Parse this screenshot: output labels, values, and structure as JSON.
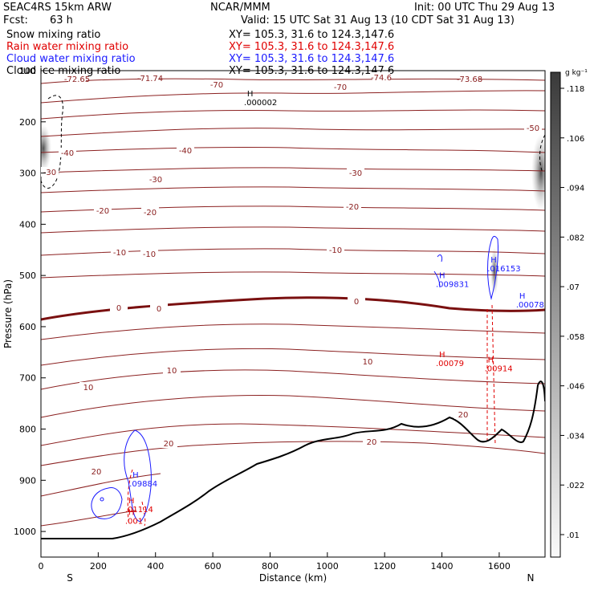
{
  "header": {
    "model": "SEAC4RS 15km ARW",
    "center": "NCAR/MMM",
    "init": "Init: 00 UTC Thu 29 Aug 13",
    "fcst_label": "Fcst:",
    "fcst_value": "63 h",
    "valid": "Valid: 15 UTC Sat 31 Aug 13 (10 CDT Sat 31 Aug 13)"
  },
  "fields": [
    {
      "name": "Snow mixing ratio",
      "xy": "XY= 105.3, 31.6 to 124.3,147.6",
      "color": "#000000"
    },
    {
      "name": "Rain water mixing ratio",
      "xy": "XY= 105.3, 31.6 to 124.3,147.6",
      "color": "#e00000"
    },
    {
      "name": "Cloud water mixing ratio",
      "xy": "XY= 105.3, 31.6 to 124.3,147.6",
      "color": "#1a1aff"
    },
    {
      "name": "Cloud ice mixing ratio",
      "xy": "XY= 105.3, 31.6 to 124.3,147.6",
      "color": "#000000"
    }
  ],
  "colorbar": {
    "unit": "g kg⁻¹",
    "labels": [
      ".01",
      ".022",
      ".034",
      ".046",
      ".058",
      ".07",
      ".082",
      ".094",
      ".106",
      ".118"
    ]
  },
  "chart_data": {
    "type": "cross-section",
    "xlabel": "Distance (km)",
    "ylabel": "Pressure (hPa)",
    "xlim": [
      0,
      1760
    ],
    "ylim": [
      1050,
      100
    ],
    "x_ticks": [
      0,
      200,
      400,
      600,
      800,
      1000,
      1200,
      1400,
      1600
    ],
    "y_ticks": [
      100,
      200,
      300,
      400,
      500,
      600,
      700,
      800,
      900,
      1000
    ],
    "endpoints": {
      "left": "S",
      "right": "N"
    },
    "temperature_contours": [
      {
        "label": "-72.65"
      },
      {
        "label": "-71.74"
      },
      {
        "label": "-70"
      },
      {
        "label": "-74.6"
      },
      {
        "label": "-73.68"
      },
      {
        "label": "-50"
      },
      {
        "label": "-40"
      },
      {
        "label": "-30"
      },
      {
        "label": "-20"
      },
      {
        "label": "-10"
      },
      {
        "label": "0"
      },
      {
        "label": "10"
      },
      {
        "label": "20"
      }
    ],
    "maxima": [
      {
        "mark": "H",
        "value": ".000002",
        "series": "Cloud ice mixing ratio",
        "x": 720,
        "p": 150
      },
      {
        "mark": "H",
        "value": ".016153",
        "series": "Cloud water mixing ratio",
        "x": 1570,
        "p": 475
      },
      {
        "mark": "H",
        "value": ".009831",
        "series": "Cloud water mixing ratio",
        "x": 1390,
        "p": 505
      },
      {
        "mark": "H",
        "value": ".00078",
        "series": "Cloud water mixing ratio",
        "x": 1670,
        "p": 545
      },
      {
        "mark": "H",
        "value": ".00079",
        "series": "Rain water mixing ratio",
        "x": 1390,
        "p": 660
      },
      {
        "mark": "H",
        "value": ".00914",
        "series": "Rain water mixing ratio",
        "x": 1560,
        "p": 670
      },
      {
        "mark": "H",
        "value": ".09884",
        "series": "Cloud water mixing ratio",
        "x": 320,
        "p": 895
      },
      {
        "mark": "H",
        "value": ".01114",
        "series": "Rain water mixing ratio",
        "x": 305,
        "p": 945
      },
      {
        "mark": "H",
        "value": ".001",
        "series": "Rain water mixing ratio",
        "x": 305,
        "p": 968
      }
    ]
  }
}
